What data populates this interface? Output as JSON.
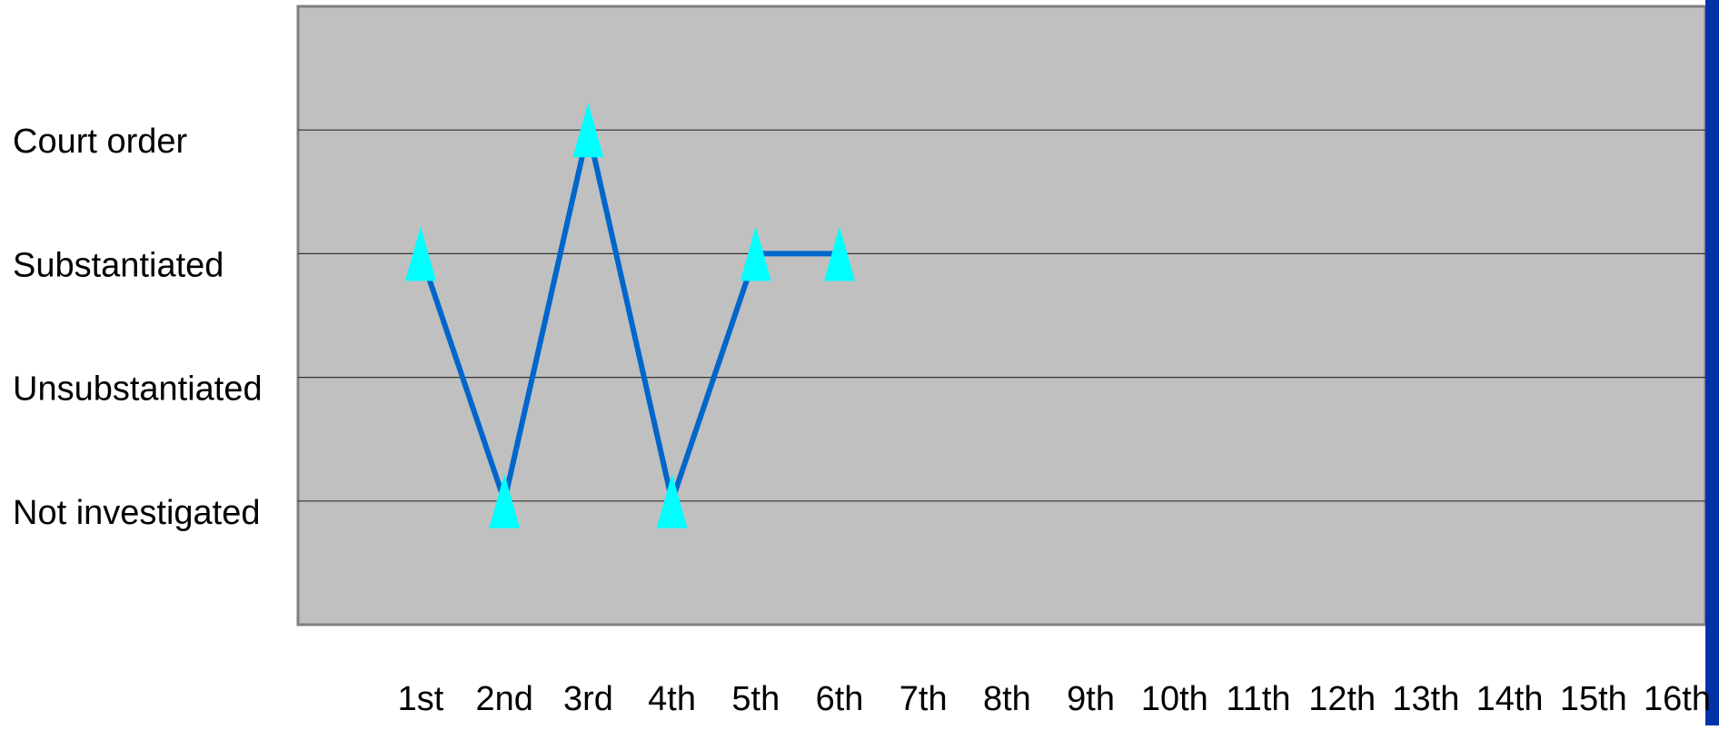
{
  "chart_data": {
    "type": "line",
    "categories": [
      "1st",
      "2nd",
      "3rd",
      "4th",
      "5th",
      "6th",
      "7th",
      "8th",
      "9th",
      "10th",
      "11th",
      "12th",
      "13th",
      "14th",
      "15th",
      "16th"
    ],
    "values": [
      3,
      1,
      4,
      1,
      3,
      3,
      null,
      null,
      null,
      null,
      null,
      null,
      null,
      null,
      null,
      null
    ],
    "color": "#0066cc",
    "marker_color": "#00ffff",
    "ylim": [
      0,
      5
    ],
    "yticks": [
      {
        "value": 1,
        "label": "Not investigated"
      },
      {
        "value": 2,
        "label": "Unsubstantiated"
      },
      {
        "value": 3,
        "label": "Substantiated"
      },
      {
        "value": 4,
        "label": "Court order"
      }
    ],
    "grid": true
  }
}
